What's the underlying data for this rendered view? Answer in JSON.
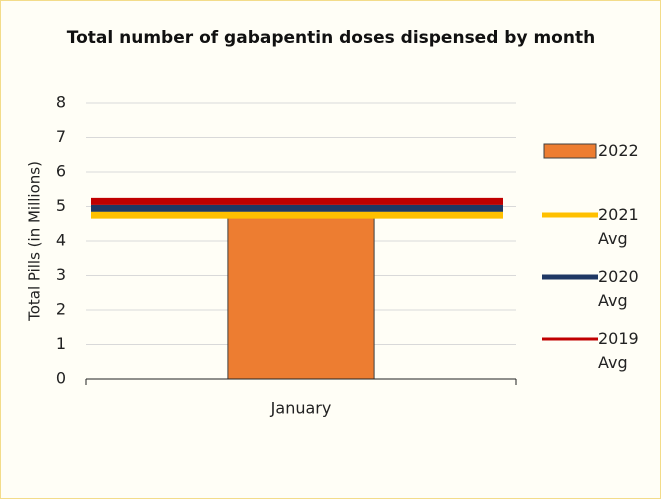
{
  "chart_data": {
    "type": "bar",
    "title": "Total number of gabapentin doses dispensed by month",
    "y_label": "Total Pills (in Millions)",
    "categories": [
      "January"
    ],
    "series": [
      {
        "name": "2022",
        "type": "bar",
        "color": "#ed7d31",
        "values": [
          4.7
        ]
      },
      {
        "name": "2021 Avg",
        "type": "line",
        "color": "#ffc000",
        "values": [
          4.75
        ]
      },
      {
        "name": "2020 Avg",
        "type": "line",
        "color": "#1f3864",
        "values": [
          4.95
        ]
      },
      {
        "name": "2019 Avg",
        "type": "line",
        "color": "#c00000",
        "values": [
          5.15
        ]
      }
    ],
    "ylim": [
      0,
      8
    ],
    "yticks": [
      0,
      1,
      2,
      3,
      4,
      5,
      6,
      7,
      8
    ],
    "grid": true,
    "legend": "right"
  }
}
